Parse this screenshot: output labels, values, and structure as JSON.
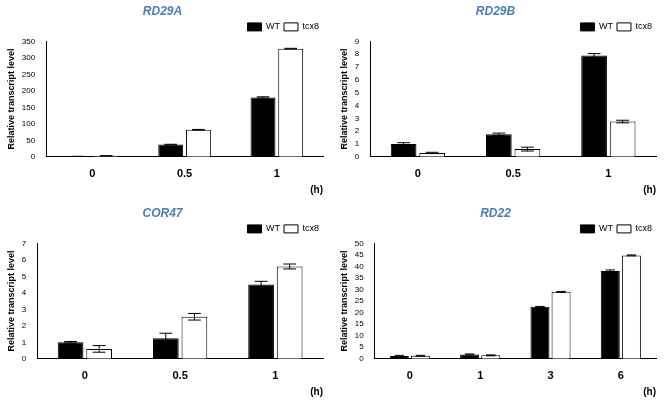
{
  "chart_data": [
    {
      "type": "bar",
      "title": "RD29A",
      "x_label": "(h)",
      "y_label": "Relative transcript level",
      "categories": [
        "0",
        "0.5",
        "1"
      ],
      "series": [
        {
          "name": "WT",
          "color": "#000000",
          "values": [
            1,
            37,
            180
          ],
          "errors": [
            0.5,
            1,
            2
          ]
        },
        {
          "name": "tcx8",
          "color": "#ffffff",
          "values": [
            3,
            82,
            328
          ],
          "errors": [
            0.5,
            1,
            1
          ]
        }
      ],
      "ylim": [
        0,
        350
      ],
      "yticks": [
        0,
        50,
        100,
        150,
        200,
        250,
        300,
        350
      ],
      "grid": false,
      "legend": "upper right"
    },
    {
      "type": "bar",
      "title": "RD29B",
      "x_label": "(h)",
      "y_label": "Relative transcript level",
      "categories": [
        "0",
        "0.5",
        "1"
      ],
      "series": [
        {
          "name": "WT",
          "color": "#000000",
          "values": [
            1.0,
            1.75,
            7.9
          ],
          "errors": [
            0.1,
            0.1,
            0.15
          ]
        },
        {
          "name": "tcx8",
          "color": "#ffffff",
          "values": [
            0.3,
            0.6,
            2.75
          ],
          "errors": [
            0.05,
            0.15,
            0.1
          ]
        }
      ],
      "ylim": [
        0,
        9
      ],
      "yticks": [
        0,
        1,
        2,
        3,
        4,
        5,
        6,
        7,
        8,
        9
      ],
      "grid": false,
      "legend": "upper right"
    },
    {
      "type": "bar",
      "title": "COR47",
      "x_label": "(h)",
      "y_label": "Relative transcript level",
      "categories": [
        "0",
        "0.5",
        "1"
      ],
      "series": [
        {
          "name": "WT",
          "color": "#000000",
          "values": [
            1.0,
            1.25,
            4.5
          ],
          "errors": [
            0.05,
            0.3,
            0.2
          ]
        },
        {
          "name": "tcx8",
          "color": "#ffffff",
          "values": [
            0.6,
            2.55,
            5.6
          ],
          "errors": [
            0.2,
            0.2,
            0.15
          ]
        }
      ],
      "ylim": [
        0,
        7
      ],
      "yticks": [
        0,
        1,
        2,
        3,
        4,
        5,
        6,
        7
      ],
      "grid": false,
      "legend": "upper right"
    },
    {
      "type": "bar",
      "title": "RD22",
      "x_label": "(h)",
      "y_label": "Relative transcript level",
      "categories": [
        "0",
        "1",
        "3",
        "6"
      ],
      "series": [
        {
          "name": "WT",
          "color": "#000000",
          "values": [
            1.2,
            1.9,
            22.5,
            38
          ],
          "errors": [
            0.3,
            0.2,
            0.2,
            0.5
          ]
        },
        {
          "name": "tcx8",
          "color": "#ffffff",
          "values": [
            1.3,
            1.5,
            29,
            44.8
          ],
          "errors": [
            0.2,
            0.2,
            0.2,
            0.2
          ]
        }
      ],
      "ylim": [
        0,
        50
      ],
      "yticks": [
        0,
        5,
        10,
        15,
        20,
        25,
        30,
        35,
        40,
        45,
        50
      ],
      "grid": false,
      "legend": "upper right"
    }
  ]
}
